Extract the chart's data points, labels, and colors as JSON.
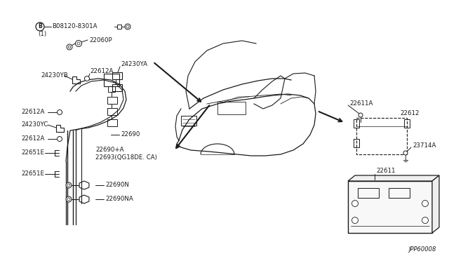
{
  "bg_color": "#ffffff",
  "line_color": "#1a1a1a",
  "diagram_code": "JPP60008",
  "labels": {
    "B08120_8301A": "B08120-8301A",
    "c1": "(1)",
    "p22060P": "22060P",
    "p24230YA": "24230YA",
    "p24230YB": "24230YB",
    "p24230YC": "24230YC",
    "p22612A_1": "22612A",
    "p22612A_2": "22612A",
    "p22612A_3": "22612A",
    "p22690": "22690",
    "p22690A": "22690+A",
    "p22693": "22693(QG18DE. CA)",
    "p22690N": "22690N",
    "p22690NA": "22690NA",
    "p22651E_1": "22651E",
    "p22651E_2": "22651E",
    "p22611": "22611",
    "p22611A": "22611A",
    "p22612": "22612",
    "p23714A": "23714A"
  },
  "fs": 6.2
}
